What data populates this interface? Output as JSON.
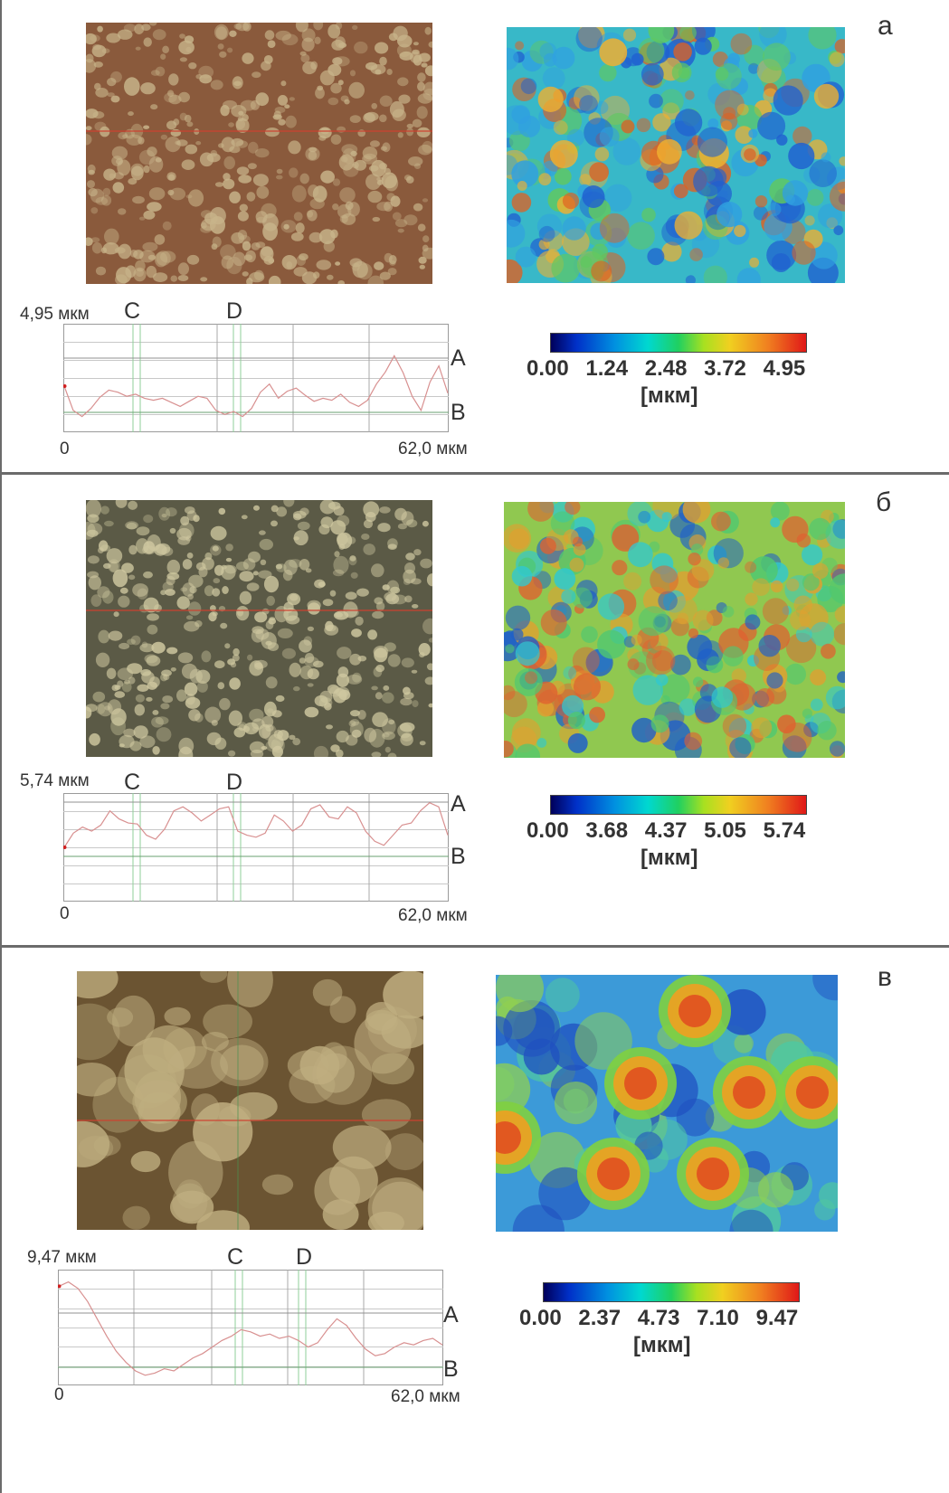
{
  "panels": [
    {
      "letter": "a",
      "max_label": "4,95 мкм",
      "marker_c": "C",
      "marker_d": "D",
      "label_a": "A",
      "label_b": "B",
      "x_start": "0",
      "x_end": "62,0 мкм",
      "colorbar_ticks": [
        "0.00",
        "1.24",
        "2.48",
        "3.72",
        "4.95"
      ],
      "unit": "[мкм]",
      "photo_base": "#8a5a3c",
      "photo_spot": "#c8b48a",
      "profile_y": [
        0.42,
        0.18,
        0.12,
        0.2,
        0.31,
        0.38,
        0.36,
        0.32,
        0.34,
        0.3,
        0.28,
        0.3,
        0.26,
        0.22,
        0.27,
        0.32,
        0.3,
        0.18,
        0.14,
        0.17,
        0.12,
        0.2,
        0.36,
        0.44,
        0.3,
        0.37,
        0.4,
        0.33,
        0.27,
        0.3,
        0.28,
        0.34,
        0.26,
        0.22,
        0.28,
        0.44,
        0.56,
        0.72,
        0.55,
        0.32,
        0.18,
        0.46,
        0.62,
        0.35
      ]
    },
    {
      "letter": "б",
      "max_label": "5,74 мкм",
      "marker_c": "C",
      "marker_d": "D",
      "label_a": "A",
      "label_b": "B",
      "x_start": "0",
      "x_end": "62,0 мкм",
      "colorbar_ticks": [
        "0.00",
        "3.68",
        "4.37",
        "5.05",
        "5.74"
      ],
      "unit": "[мкм]",
      "photo_base": "#5b5a46",
      "photo_spot": "#cfc8a0",
      "profile_y": [
        0.5,
        0.64,
        0.7,
        0.66,
        0.72,
        0.86,
        0.78,
        0.74,
        0.73,
        0.62,
        0.58,
        0.68,
        0.86,
        0.9,
        0.84,
        0.76,
        0.82,
        0.88,
        0.9,
        0.66,
        0.62,
        0.6,
        0.64,
        0.82,
        0.76,
        0.66,
        0.72,
        0.88,
        0.92,
        0.8,
        0.78,
        0.9,
        0.84,
        0.66,
        0.56,
        0.52,
        0.62,
        0.72,
        0.74,
        0.86,
        0.94,
        0.9,
        0.62
      ]
    },
    {
      "letter": "в",
      "max_label": "9,47 мкм",
      "marker_c": "C",
      "marker_d": "D",
      "label_a": "A",
      "label_b": "B",
      "x_start": "0",
      "x_end": "62,0 мкм",
      "colorbar_ticks": [
        "0.00",
        "2.37",
        "4.73",
        "7.10",
        "9.47"
      ],
      "unit": "[мкм]",
      "photo_base": "#6b5432",
      "photo_spot": "#bfae80",
      "profile_y": [
        0.88,
        0.92,
        0.86,
        0.74,
        0.58,
        0.42,
        0.28,
        0.18,
        0.1,
        0.06,
        0.08,
        0.12,
        0.1,
        0.16,
        0.22,
        0.26,
        0.32,
        0.38,
        0.42,
        0.48,
        0.46,
        0.42,
        0.44,
        0.4,
        0.42,
        0.38,
        0.32,
        0.36,
        0.48,
        0.58,
        0.52,
        0.4,
        0.3,
        0.24,
        0.26,
        0.32,
        0.36,
        0.34,
        0.38,
        0.4,
        0.34
      ]
    }
  ]
}
